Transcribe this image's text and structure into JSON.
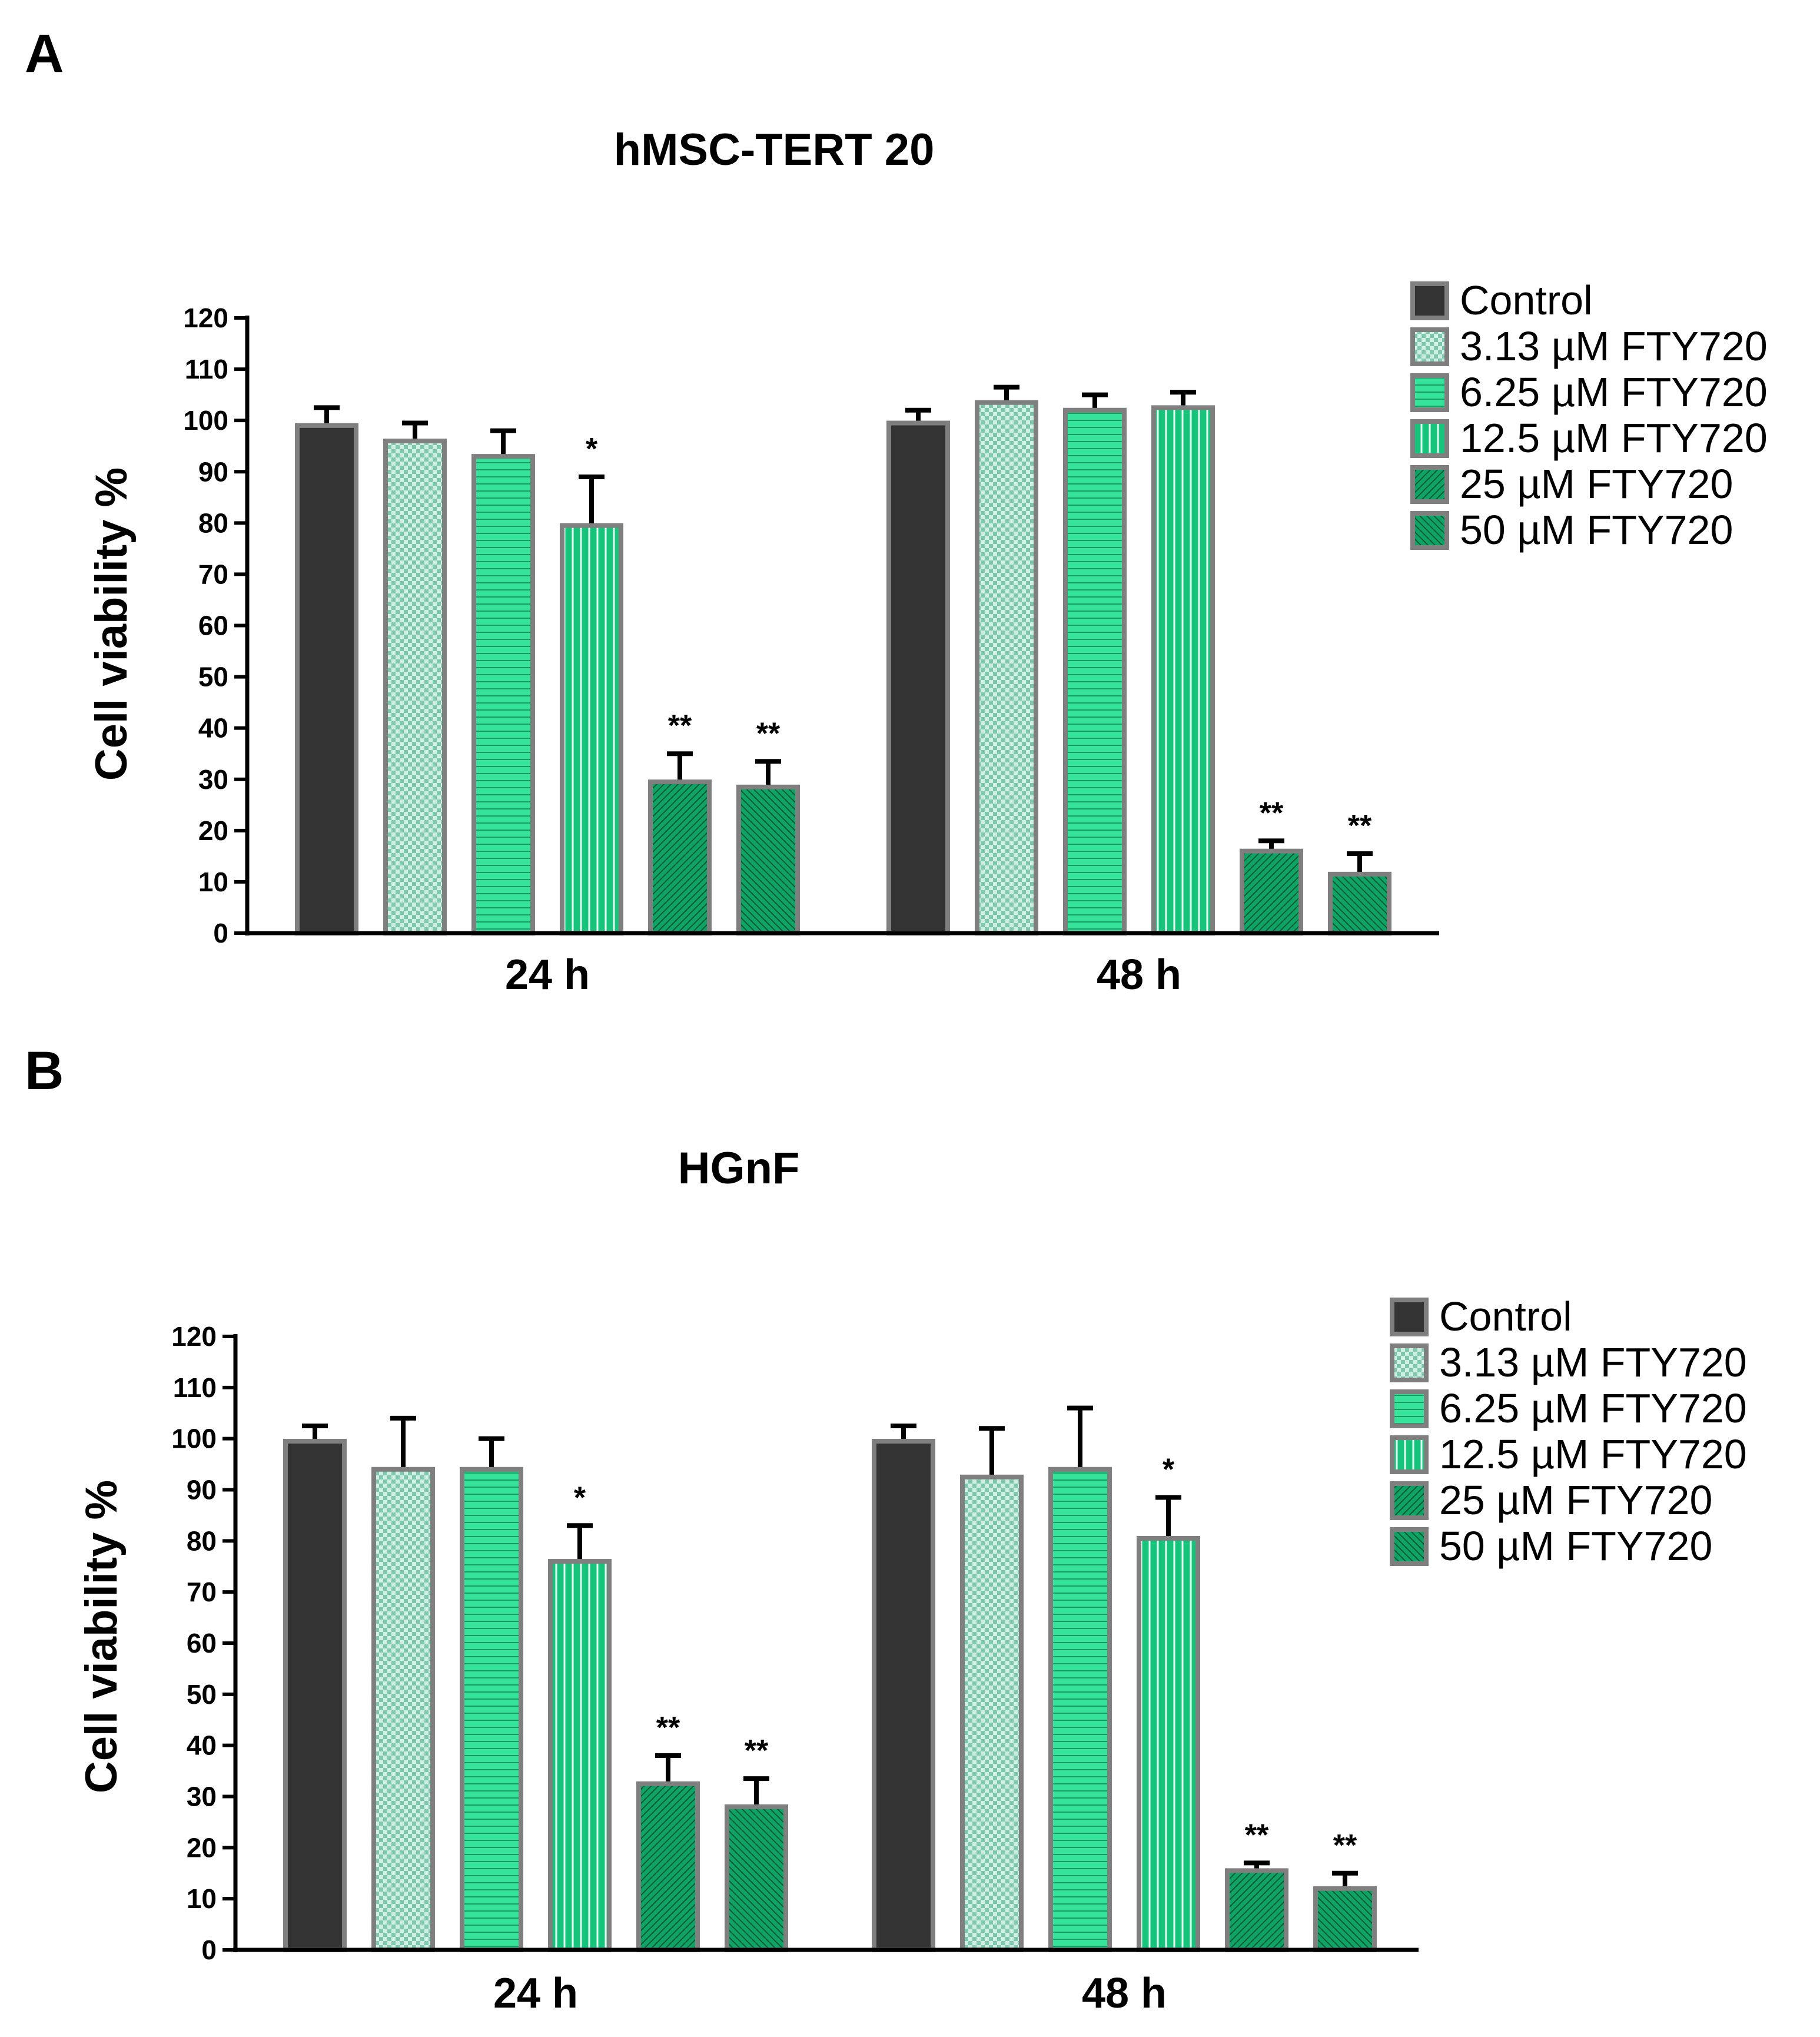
{
  "panels": [
    "A",
    "B"
  ],
  "legend": {
    "items": [
      {
        "label": "Control",
        "pattern": "solid"
      },
      {
        "label": "3.13 µM FTY720",
        "pattern": "checker"
      },
      {
        "label": "6.25 µM FTY720",
        "pattern": "hlines"
      },
      {
        "label": "12.5 µM FTY720",
        "pattern": "vlines"
      },
      {
        "label": "25 µM FTY720",
        "pattern": "diag"
      },
      {
        "label": "50 µM FTY720",
        "pattern": "diag2"
      }
    ]
  },
  "colors": {
    "control": "#333333",
    "checker_light": "#d0efe4",
    "checker_dark": "#7fc8ae",
    "light_green": "#35e49a",
    "mid_green": "#17c47b",
    "dark_green": "#0fa466",
    "bar_border": "#7f7f7f",
    "axis": "#000000"
  },
  "chart_data": [
    {
      "type": "bar",
      "panel": "A",
      "title": "hMSC-TERT 20",
      "ylabel": "Cell viability %",
      "xlabel": "",
      "ylim": [
        0,
        120
      ],
      "yticks": [
        0,
        10,
        20,
        30,
        40,
        50,
        60,
        70,
        80,
        90,
        100,
        110,
        120
      ],
      "categories": [
        "24 h",
        "48 h"
      ],
      "series": [
        {
          "name": "Control",
          "values": [
            99,
            99.5
          ],
          "errors": [
            3.5,
            2.5
          ],
          "sig": [
            "",
            ""
          ]
        },
        {
          "name": "3.13 µM FTY720",
          "values": [
            96,
            103.5
          ],
          "errors": [
            3.5,
            3
          ],
          "sig": [
            "",
            ""
          ]
        },
        {
          "name": "6.25 µM FTY720",
          "values": [
            93,
            102
          ],
          "errors": [
            5,
            3
          ],
          "sig": [
            "",
            ""
          ]
        },
        {
          "name": "12.5 µM FTY720",
          "values": [
            79.5,
            102.5
          ],
          "errors": [
            9.5,
            3
          ],
          "sig": [
            "*",
            ""
          ]
        },
        {
          "name": "25 µM FTY720",
          "values": [
            29.5,
            16
          ],
          "errors": [
            5.5,
            2
          ],
          "sig": [
            "**",
            "**"
          ]
        },
        {
          "name": "50 µM FTY720",
          "values": [
            28.5,
            11.5
          ],
          "errors": [
            5,
            4
          ],
          "sig": [
            "**",
            "**"
          ]
        }
      ]
    },
    {
      "type": "bar",
      "panel": "B",
      "title": "HGnF",
      "ylabel": "Cell viability %",
      "xlabel": "",
      "ylim": [
        0,
        120
      ],
      "yticks": [
        0,
        10,
        20,
        30,
        40,
        50,
        60,
        70,
        80,
        90,
        100,
        110,
        120
      ],
      "categories": [
        "24 h",
        "48 h"
      ],
      "series": [
        {
          "name": "Control",
          "values": [
            99.5,
            99.5
          ],
          "errors": [
            3,
            3
          ],
          "sig": [
            "",
            ""
          ]
        },
        {
          "name": "3.13 µM FTY720",
          "values": [
            94,
            92.5
          ],
          "errors": [
            10,
            9.5
          ],
          "sig": [
            "",
            ""
          ]
        },
        {
          "name": "6.25 µM FTY720",
          "values": [
            94,
            94
          ],
          "errors": [
            6,
            12
          ],
          "sig": [
            "",
            ""
          ]
        },
        {
          "name": "12.5 µM FTY720",
          "values": [
            76,
            80.5
          ],
          "errors": [
            7,
            8
          ],
          "sig": [
            "*",
            "*"
          ]
        },
        {
          "name": "25 µM FTY720",
          "values": [
            32.5,
            15.5
          ],
          "errors": [
            5.5,
            1.5
          ],
          "sig": [
            "**",
            "**"
          ]
        },
        {
          "name": "50 µM FTY720",
          "values": [
            28,
            12
          ],
          "errors": [
            5.5,
            3
          ],
          "sig": [
            "**",
            "**"
          ]
        }
      ]
    }
  ]
}
